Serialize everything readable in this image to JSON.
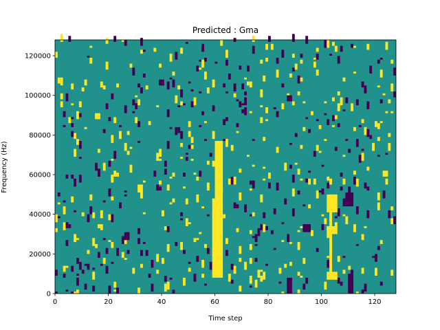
{
  "chart_data": {
    "type": "heatmap",
    "title": "Predicted : Gma",
    "xlabel": "Time step",
    "ylabel": "Frequency (Hz)",
    "xlim": [
      0,
      128
    ],
    "ylim": [
      0,
      128000
    ],
    "x_ticks": [
      0,
      20,
      40,
      60,
      80,
      100,
      120
    ],
    "y_ticks": [
      0,
      20000,
      40000,
      60000,
      80000,
      100000,
      120000
    ],
    "x_tick_labels": [
      "0",
      "20",
      "40",
      "60",
      "80",
      "100",
      "120"
    ],
    "y_tick_labels": [
      "0",
      "20000",
      "40000",
      "60000",
      "80000",
      "100000",
      "120000"
    ],
    "colors": {
      "background": "#21918c",
      "high": "#fde725",
      "low": "#440154"
    },
    "high_regions": [
      {
        "x": [
          60,
          63
        ],
        "y": [
          8000,
          77000
        ]
      },
      {
        "x": [
          59,
          60
        ],
        "y": [
          8000,
          48000
        ]
      },
      {
        "x": [
          103,
          104
        ],
        "y": [
          8000,
          50000
        ]
      },
      {
        "x": [
          102,
          106
        ],
        "y": [
          41000,
          50000
        ]
      },
      {
        "x": [
          102,
          106
        ],
        "y": [
          30000,
          34000
        ]
      },
      {
        "x": [
          103,
          106
        ],
        "y": [
          7000,
          11000
        ]
      },
      {
        "x": [
          31,
          33
        ],
        "y": [
          51000,
          55000
        ]
      },
      {
        "x": [
          123,
          125
        ],
        "y": [
          59000,
          62000
        ]
      }
    ],
    "low_regions": [
      {
        "x": [
          109,
          112
        ],
        "y": [
          44000,
          51000
        ]
      },
      {
        "x": [
          110,
          112
        ],
        "y": [
          0,
          10000
        ]
      },
      {
        "x": [
          87,
          89
        ],
        "y": [
          0,
          8000
        ]
      },
      {
        "x": [
          93,
          96
        ],
        "y": [
          31000,
          35000
        ]
      },
      {
        "x": [
          26,
          28
        ],
        "y": [
          27000,
          31000
        ]
      },
      {
        "x": [
          39,
          41
        ],
        "y": [
          105000,
          108000
        ]
      },
      {
        "x": [
          87,
          89
        ],
        "y": [
          97000,
          100000
        ]
      }
    ],
    "speckle_density": 0.042,
    "speckle_seed": 12345
  }
}
